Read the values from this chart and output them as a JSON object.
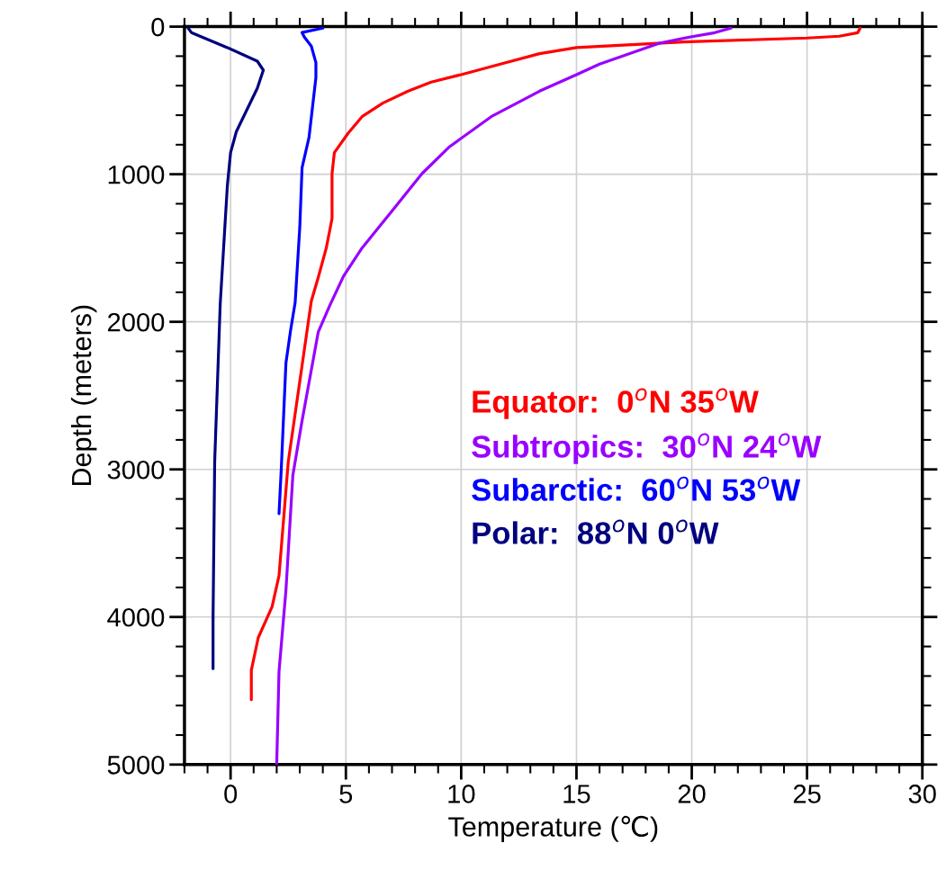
{
  "chart_data": {
    "type": "line",
    "xlabel": "Temperature (℃)",
    "ylabel": "Depth (meters)",
    "xlim": [
      -2,
      30
    ],
    "xticks": [
      0,
      5,
      10,
      15,
      20,
      25,
      30
    ],
    "ylim": [
      5000,
      0
    ],
    "yticks": [
      0,
      1000,
      2000,
      3000,
      4000,
      5000
    ],
    "grid": true,
    "legend": "right",
    "marker": "none",
    "line_style": "solid",
    "series": [
      {
        "name": "Equator:  0$^{o}$N 35$^{o}$W",
        "color": "#ff0000",
        "x": [
          27.3,
          27.2,
          26.4,
          25.0,
          19.9,
          15.0,
          13.4,
          11.7,
          10.0,
          8.7,
          7.7,
          6.6,
          5.7,
          5.1,
          4.5,
          4.4,
          4.4,
          4.15,
          3.8,
          3.5,
          2.5,
          2.1,
          1.8,
          1.2,
          0.9,
          0.9
        ],
        "values": [
          10,
          41,
          65,
          77,
          102,
          142,
          183,
          254,
          325,
          376,
          437,
          518,
          610,
          722,
          854,
          996,
          1300,
          1500,
          1700,
          1860,
          2950,
          3720,
          3930,
          4140,
          4360,
          4560
        ]
      },
      {
        "name": "Subtropics:  30$^{o}$N 24$^{o}$W",
        "color": "#9900ff",
        "x": [
          21.7,
          21.0,
          19.9,
          18.6,
          16.0,
          15.0,
          13.4,
          11.3,
          9.5,
          8.3,
          7.15,
          5.7,
          4.9,
          4.3,
          3.8,
          3.1,
          2.7,
          2.4,
          2.1,
          2.0
        ],
        "values": [
          10,
          41,
          71,
          112,
          254,
          325,
          437,
          610,
          813,
          996,
          1220,
          1500,
          1690,
          1890,
          2070,
          2670,
          3040,
          3820,
          4370,
          5000
        ]
      },
      {
        "name": "Subarctic:  60$^{o}$N 53$^{o}$W",
        "color": "#0000ff",
        "x": [
          4.0,
          3.1,
          3.2,
          3.5,
          3.7,
          3.7,
          3.4,
          3.1,
          3.0,
          2.8,
          2.6,
          2.4,
          2.2,
          2.1
        ],
        "values": [
          10,
          40,
          71,
          132,
          244,
          345,
          752,
          955,
          1360,
          1870,
          2060,
          2280,
          2990,
          3300
        ]
      },
      {
        "name": "Polar:  88$^{o}$N 0$^{o}$W",
        "color": "#000080",
        "x": [
          -1.84,
          -1.7,
          -0.14,
          1.16,
          1.42,
          1.16,
          0.25,
          0.0,
          -0.14,
          -0.45,
          -0.69,
          -0.76,
          -0.76
        ],
        "values": [
          10,
          40,
          142,
          234,
          295,
          417,
          711,
          854,
          1077,
          1880,
          2950,
          4000,
          4350
        ]
      }
    ]
  }
}
